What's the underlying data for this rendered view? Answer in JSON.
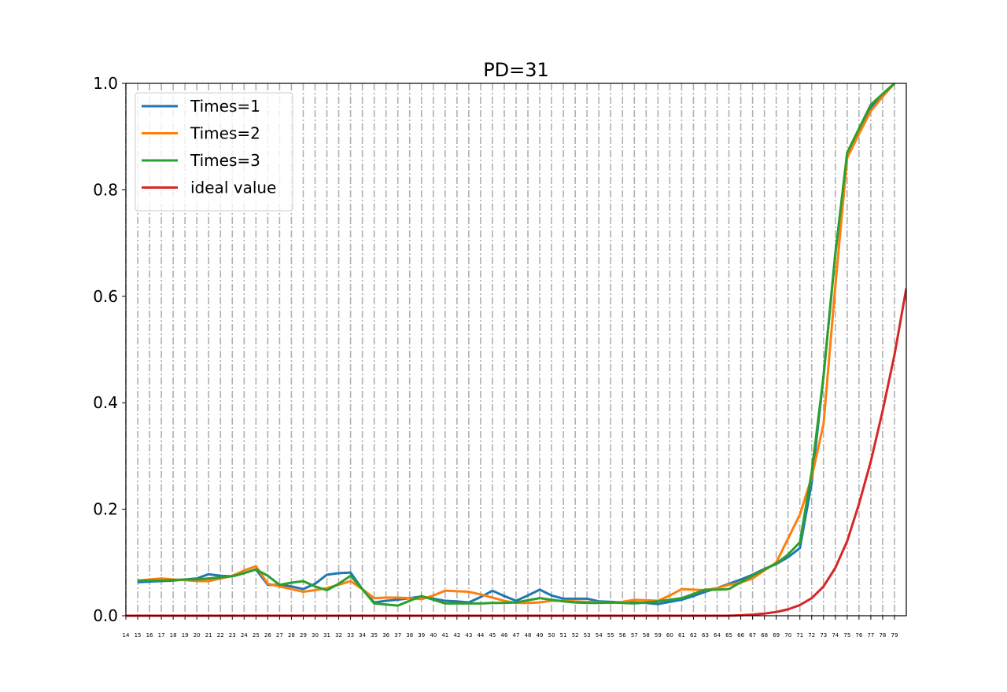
{
  "chart_data": {
    "type": "line",
    "title": "PD=31",
    "xlim": [
      14,
      80
    ],
    "xticks": [
      14,
      15,
      16,
      17,
      18,
      19,
      20,
      21,
      22,
      23,
      24,
      25,
      26,
      27,
      28,
      29,
      30,
      31,
      32,
      33,
      34,
      35,
      36,
      37,
      38,
      39,
      40,
      41,
      42,
      43,
      44,
      45,
      46,
      47,
      48,
      49,
      50,
      51,
      52,
      53,
      54,
      55,
      56,
      57,
      58,
      59,
      60,
      61,
      62,
      63,
      64,
      65,
      66,
      67,
      68,
      69,
      70,
      71,
      72,
      73,
      74,
      75,
      76,
      77,
      78,
      79
    ],
    "ylim": [
      0,
      1
    ],
    "yticks": [
      {
        "value": 0,
        "label": "0.0"
      },
      {
        "value": 0.2,
        "label": "0.2"
      },
      {
        "value": 0.4,
        "label": "0.4"
      },
      {
        "value": 0.6,
        "label": "0.6"
      },
      {
        "value": 0.8,
        "label": "0.8"
      },
      {
        "value": 1,
        "label": "1.0"
      }
    ],
    "grid": true,
    "legend": "upper left",
    "series": [
      {
        "name": "Times=1",
        "color": "#1f77b4",
        "x": [
          15,
          16,
          17,
          18,
          19,
          20,
          21,
          22,
          23,
          24,
          25,
          26,
          27,
          28,
          29,
          30,
          31,
          32,
          33,
          34,
          35,
          36,
          37,
          38,
          39,
          40,
          41,
          42,
          43,
          44,
          45,
          46,
          47,
          48,
          49,
          50,
          51,
          52,
          53,
          54,
          55,
          56,
          57,
          58,
          59,
          60,
          61,
          62,
          63,
          64,
          65,
          66,
          67,
          68,
          69,
          70,
          71,
          72,
          73,
          74,
          75,
          76,
          77,
          78,
          79
        ],
        "values": [
          0.063,
          0.064,
          0.065,
          0.066,
          0.068,
          0.07,
          0.078,
          0.075,
          0.074,
          0.08,
          0.087,
          0.058,
          0.058,
          0.055,
          0.05,
          0.06,
          0.077,
          0.08,
          0.081,
          0.05,
          0.025,
          0.028,
          0.03,
          0.033,
          0.036,
          0.032,
          0.028,
          0.027,
          0.025,
          0.035,
          0.047,
          0.037,
          0.028,
          0.038,
          0.049,
          0.038,
          0.032,
          0.032,
          0.032,
          0.027,
          0.026,
          0.025,
          0.025,
          0.024,
          0.022,
          0.026,
          0.03,
          0.037,
          0.045,
          0.052,
          0.06,
          0.068,
          0.077,
          0.088,
          0.097,
          0.11,
          0.127,
          0.25,
          0.45,
          0.68,
          0.865,
          0.91,
          0.955,
          0.98,
          1.0
        ]
      },
      {
        "name": "Times=2",
        "color": "#ff7f0e",
        "x": [
          15,
          16,
          17,
          18,
          19,
          20,
          21,
          22,
          23,
          24,
          25,
          26,
          27,
          28,
          29,
          30,
          31,
          32,
          33,
          34,
          35,
          36,
          37,
          38,
          39,
          40,
          41,
          42,
          43,
          44,
          45,
          46,
          47,
          48,
          49,
          50,
          51,
          52,
          53,
          54,
          55,
          56,
          57,
          58,
          59,
          60,
          61,
          62,
          63,
          64,
          65,
          66,
          67,
          68,
          69,
          70,
          71,
          72,
          73,
          74,
          75,
          76,
          77,
          78,
          79
        ],
        "values": [
          0.066,
          0.068,
          0.07,
          0.068,
          0.067,
          0.065,
          0.065,
          0.07,
          0.075,
          0.085,
          0.093,
          0.06,
          0.055,
          0.05,
          0.045,
          0.048,
          0.052,
          0.058,
          0.065,
          0.05,
          0.033,
          0.034,
          0.034,
          0.033,
          0.031,
          0.038,
          0.047,
          0.046,
          0.045,
          0.04,
          0.034,
          0.028,
          0.024,
          0.024,
          0.025,
          0.028,
          0.028,
          0.027,
          0.026,
          0.025,
          0.024,
          0.026,
          0.03,
          0.029,
          0.028,
          0.038,
          0.05,
          0.049,
          0.048,
          0.052,
          0.058,
          0.062,
          0.07,
          0.085,
          0.1,
          0.145,
          0.19,
          0.26,
          0.36,
          0.62,
          0.86,
          0.905,
          0.948,
          0.975,
          1.0
        ]
      },
      {
        "name": "Times=3",
        "color": "#2ca02c",
        "x": [
          15,
          16,
          17,
          18,
          19,
          20,
          21,
          22,
          23,
          24,
          25,
          26,
          27,
          28,
          29,
          30,
          31,
          32,
          33,
          34,
          35,
          36,
          37,
          38,
          39,
          40,
          41,
          42,
          43,
          44,
          45,
          46,
          47,
          48,
          49,
          50,
          51,
          52,
          53,
          54,
          55,
          56,
          57,
          58,
          59,
          60,
          61,
          62,
          63,
          64,
          65,
          66,
          67,
          68,
          69,
          70,
          71,
          72,
          73,
          74,
          75,
          76,
          77,
          78,
          79
        ],
        "values": [
          0.066,
          0.066,
          0.066,
          0.067,
          0.068,
          0.068,
          0.07,
          0.072,
          0.074,
          0.08,
          0.087,
          0.075,
          0.058,
          0.062,
          0.065,
          0.055,
          0.048,
          0.06,
          0.075,
          0.05,
          0.023,
          0.021,
          0.019,
          0.028,
          0.037,
          0.03,
          0.023,
          0.023,
          0.023,
          0.023,
          0.024,
          0.024,
          0.025,
          0.029,
          0.033,
          0.03,
          0.027,
          0.025,
          0.024,
          0.024,
          0.025,
          0.024,
          0.023,
          0.025,
          0.027,
          0.03,
          0.033,
          0.041,
          0.049,
          0.049,
          0.05,
          0.063,
          0.075,
          0.087,
          0.098,
          0.115,
          0.138,
          0.27,
          0.45,
          0.68,
          0.87,
          0.915,
          0.96,
          0.98,
          1.0
        ]
      },
      {
        "name": "ideal value",
        "color": "#d62728",
        "x": [
          14,
          15,
          16,
          17,
          18,
          19,
          20,
          21,
          22,
          23,
          24,
          25,
          26,
          27,
          28,
          29,
          30,
          31,
          32,
          33,
          34,
          35,
          36,
          37,
          38,
          39,
          40,
          41,
          42,
          43,
          44,
          45,
          46,
          47,
          48,
          49,
          50,
          51,
          52,
          53,
          54,
          55,
          56,
          57,
          58,
          59,
          60,
          61,
          62,
          63,
          64,
          65,
          66,
          67,
          68,
          69,
          70,
          71,
          72,
          73,
          74,
          75,
          76,
          77,
          78,
          79,
          80
        ],
        "values": [
          0,
          0,
          0,
          0,
          0,
          0,
          0,
          0,
          0,
          0,
          0,
          0,
          0,
          0,
          0,
          0,
          0,
          0,
          0,
          0,
          0,
          0,
          0,
          0,
          0,
          0,
          0,
          0,
          0,
          0,
          0,
          0,
          0,
          0,
          0,
          0,
          0,
          0,
          0,
          0,
          0,
          0,
          0,
          0,
          0,
          0,
          0,
          0,
          0,
          0,
          0,
          0,
          0.001,
          0.002,
          0.004,
          0.007,
          0.012,
          0.02,
          0.033,
          0.055,
          0.09,
          0.14,
          0.21,
          0.29,
          0.385,
          0.49,
          0.615
        ]
      }
    ]
  }
}
